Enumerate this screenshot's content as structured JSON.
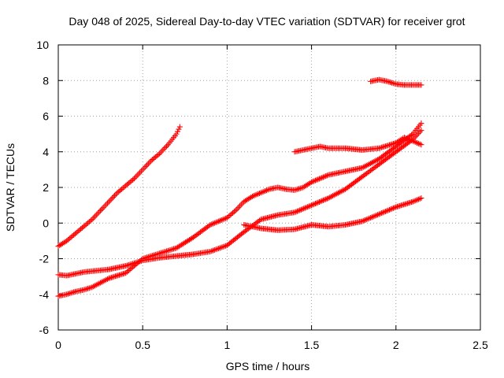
{
  "chart_data": {
    "type": "scatter",
    "title": "Day 048 of 2025, Sidereal Day-to-day VTEC variation (SDTVAR) for receiver grot",
    "xlabel": "GPS time / hours",
    "ylabel": "SDTVAR / TECUs",
    "xlim": [
      0,
      2.5
    ],
    "ylim": [
      -6,
      10
    ],
    "xticks": [
      "0",
      "0.5",
      "1",
      "1.5",
      "2",
      "2.5"
    ],
    "yticks": [
      "-6",
      "-4",
      "-2",
      "0",
      "2",
      "4",
      "6",
      "8",
      "10"
    ],
    "grid": true,
    "marker": "plus",
    "color": "#ff0000",
    "series": [
      {
        "x": [
          0.0,
          0.05,
          0.1,
          0.15,
          0.2,
          0.25,
          0.3,
          0.35,
          0.4,
          0.45,
          0.5,
          0.55,
          0.6,
          0.65,
          0.7,
          0.72
        ],
        "y": [
          -1.3,
          -1.0,
          -0.6,
          -0.2,
          0.2,
          0.7,
          1.2,
          1.7,
          2.1,
          2.5,
          3.0,
          3.5,
          3.9,
          4.4,
          5.0,
          5.4
        ]
      },
      {
        "x": [
          0.0,
          0.05,
          0.1,
          0.15,
          0.2,
          0.3,
          0.4,
          0.5,
          0.6,
          0.7,
          0.8,
          0.9,
          1.0,
          1.1,
          1.2,
          1.3,
          1.4,
          1.5,
          1.6,
          1.7,
          1.8,
          1.9,
          2.0,
          2.1,
          2.15
        ],
        "y": [
          -2.9,
          -2.95,
          -2.85,
          -2.75,
          -2.7,
          -2.6,
          -2.4,
          -2.1,
          -1.95,
          -1.85,
          -1.75,
          -1.6,
          -1.25,
          -0.5,
          0.2,
          0.45,
          0.6,
          1.0,
          1.4,
          1.9,
          2.6,
          3.3,
          4.0,
          4.7,
          5.2
        ]
      },
      {
        "x": [
          0.0,
          0.05,
          0.1,
          0.15,
          0.2,
          0.3,
          0.4,
          0.5,
          0.6,
          0.7,
          0.8,
          0.9,
          1.0,
          1.05,
          1.1,
          1.15,
          1.2,
          1.25,
          1.3,
          1.35,
          1.4,
          1.45,
          1.5,
          1.6,
          1.7,
          1.8,
          1.9,
          2.0,
          2.1,
          2.15
        ],
        "y": [
          -4.1,
          -4.0,
          -3.85,
          -3.75,
          -3.6,
          -3.1,
          -2.8,
          -2.0,
          -1.7,
          -1.4,
          -0.8,
          -0.1,
          0.3,
          0.7,
          1.2,
          1.5,
          1.7,
          1.9,
          2.0,
          1.9,
          1.85,
          2.0,
          2.3,
          2.7,
          2.9,
          3.1,
          3.6,
          4.3,
          5.0,
          5.6
        ]
      },
      {
        "x": [
          1.1,
          1.2,
          1.3,
          1.4,
          1.5,
          1.6,
          1.7,
          1.8,
          1.9,
          2.0,
          2.1,
          2.15
        ],
        "y": [
          -0.1,
          -0.3,
          -0.4,
          -0.35,
          -0.1,
          -0.2,
          -0.1,
          0.1,
          0.5,
          0.9,
          1.2,
          1.4
        ]
      },
      {
        "x": [
          1.4,
          1.45,
          1.5,
          1.55,
          1.6,
          1.7,
          1.8,
          1.9,
          2.0,
          2.05,
          2.1,
          2.15
        ],
        "y": [
          4.0,
          4.1,
          4.2,
          4.3,
          4.2,
          4.2,
          4.1,
          4.2,
          4.5,
          4.8,
          4.6,
          4.4
        ]
      },
      {
        "x": [
          1.85,
          1.9,
          1.95,
          2.0,
          2.05,
          2.1,
          2.15
        ],
        "y": [
          7.95,
          8.05,
          7.95,
          7.8,
          7.75,
          7.75,
          7.75
        ]
      }
    ]
  }
}
